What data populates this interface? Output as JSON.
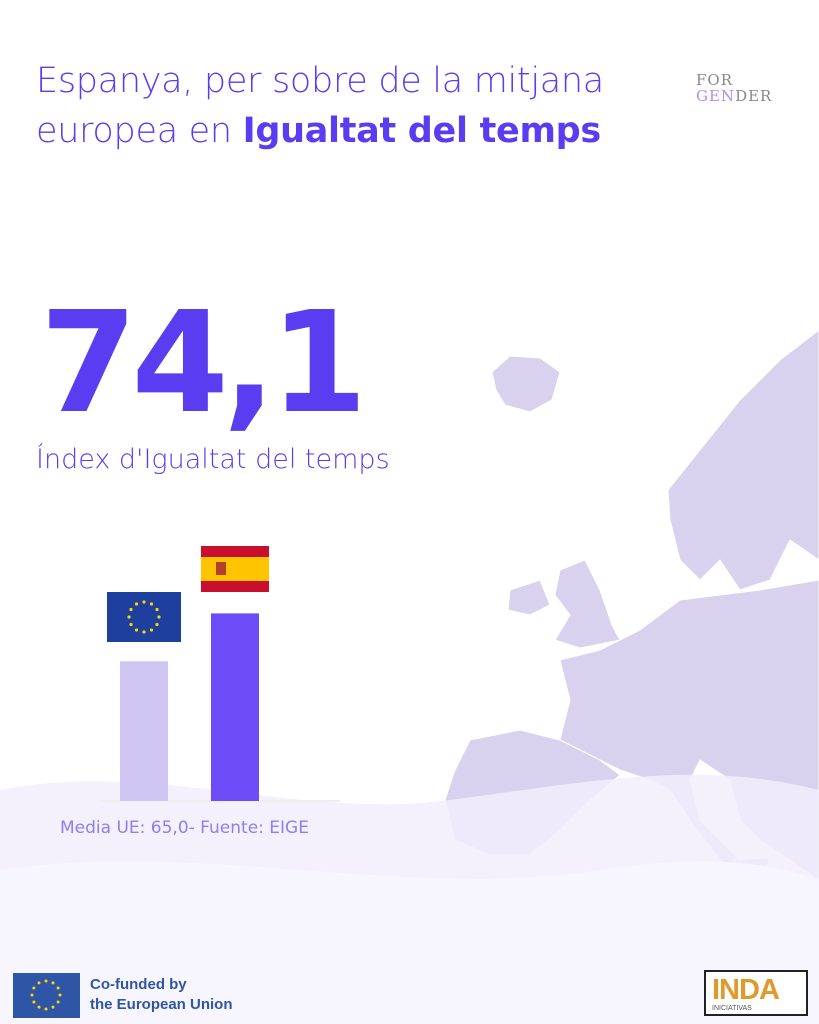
{
  "title": {
    "line1": "Espanya, per sobre de la mitjana",
    "line2_plain": "europea en ",
    "line2_bold": "Igualtat del temps"
  },
  "logo_forgender": {
    "line1": "FOR",
    "line2_a": "GEN",
    "line2_b": "DER"
  },
  "headline_value": "74,1",
  "headline_label": "Índex d'Igualtat del temps",
  "source": "Media UE: 65,0- Fuente: EIGE",
  "footer": {
    "cofunded_line1": "Co-funded by",
    "cofunded_line2": "the European Union",
    "inda_logo": "INDA",
    "inda_sub": "INICIATIVAS"
  },
  "colors": {
    "accent": "#5a3df0",
    "eu_bar": "#cfc5f2",
    "spain_bar": "#6c4cf7",
    "map": "#d8d2ee"
  },
  "chart_data": {
    "type": "bar",
    "categories": [
      "EU",
      "Spain"
    ],
    "category_icons": [
      "eu-flag",
      "spain-flag"
    ],
    "values": [
      65.0,
      74.1
    ],
    "ylim": [
      38.5,
      80
    ],
    "grid": false
  }
}
